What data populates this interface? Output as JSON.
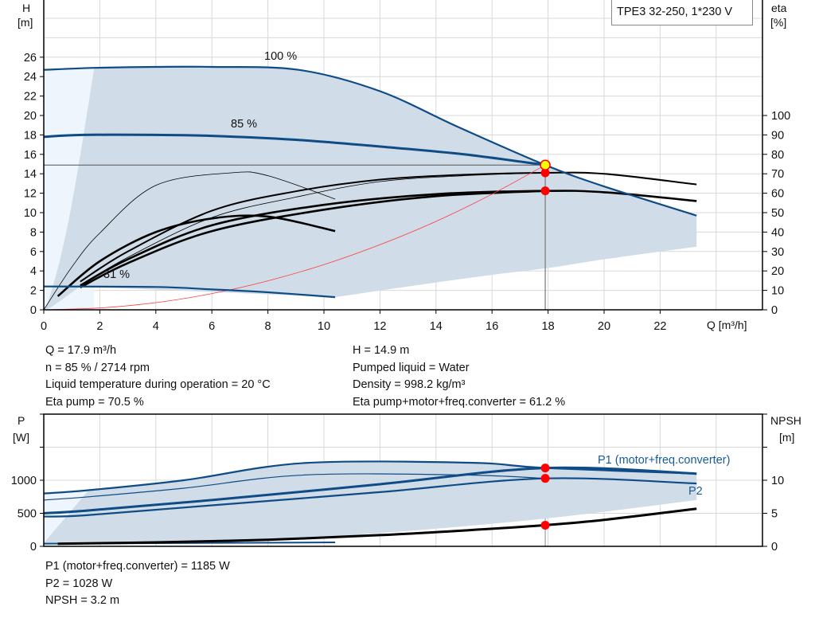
{
  "title": "TPE3 32-250, 1*230 V",
  "colors": {
    "curve_blue": "#0f4c86",
    "shade": "#d0dce8",
    "shade_light": "#eef5fc",
    "grid": "#d8d8d8",
    "system_curve": "#ff3b3b",
    "operating_point": "#ff0000",
    "duty_point_fill": "#ffff00"
  },
  "chart_data": [
    {
      "type": "line",
      "ylabel_left": "H",
      "ylabel_left_unit": "[m]",
      "ylabel_right": "eta",
      "ylabel_right_unit": "[%]",
      "xlabel": "Q [m³/h]",
      "xlim": [
        0,
        25.6
      ],
      "ylim_left": [
        0,
        31.9
      ],
      "ylim_right": [
        0,
        159.5
      ],
      "grid": true,
      "xticks": [
        0,
        2,
        4,
        6,
        8,
        10,
        12,
        14,
        16,
        18,
        20,
        22
      ],
      "yticks_left": [
        0,
        2,
        4,
        6,
        8,
        10,
        12,
        14,
        16,
        18,
        20,
        22,
        24,
        26
      ],
      "yticks_right": [
        0,
        10,
        20,
        30,
        40,
        50,
        60,
        70,
        80,
        90,
        100
      ],
      "curve_labels": {
        "max": "100 %",
        "duty": "85 %",
        "min": "31 %"
      },
      "head_curves": [
        {
          "speed": "100 %",
          "x": [
            0,
            1.8,
            4,
            6,
            9.1,
            12,
            14.8,
            17.9,
            20,
            23.3
          ],
          "y": [
            24.7,
            24.9,
            25,
            25,
            24.7,
            22.5,
            18.8,
            14.9,
            12.7,
            9.7
          ]
        },
        {
          "speed": "85 %",
          "x": [
            0,
            1.4,
            4,
            6,
            9,
            12,
            15,
            17.9
          ],
          "y": [
            17.8,
            18,
            18,
            17.9,
            17.5,
            16.8,
            16,
            14.9
          ]
        },
        {
          "speed": "31 %",
          "x": [
            0,
            4,
            6,
            8,
            10.4
          ],
          "y": [
            2.4,
            2.35,
            2.1,
            1.8,
            1.3
          ]
        }
      ],
      "operating_range_lower": {
        "x": [
          23.3,
          20,
          18,
          16,
          13,
          10.4
        ],
        "y": [
          6.5,
          5.2,
          4.3,
          3.6,
          2.4,
          1.3
        ]
      },
      "system_curve": {
        "x": [
          0,
          2,
          4,
          6,
          8,
          10,
          12,
          14,
          16,
          17.9
        ],
        "y": [
          0,
          0.19,
          0.74,
          1.67,
          2.98,
          4.65,
          6.7,
          9.1,
          11.9,
          14.9
        ]
      },
      "eta_curves": [
        {
          "x": [
            0.5,
            2,
            4,
            6,
            8,
            10.4
          ],
          "y": [
            7,
            25,
            40,
            47,
            48,
            40.5
          ],
          "weight": "thick"
        },
        {
          "x": [
            0,
            1,
            2,
            4,
            6.7,
            8,
            10.4
          ],
          "y": [
            0,
            22,
            39.5,
            64,
            70.5,
            69,
            57
          ],
          "weight": "thin"
        },
        {
          "x": [
            1.3,
            3,
            6,
            9,
            12,
            15,
            17.9,
            20,
            23.3
          ],
          "y": [
            14.5,
            30,
            51,
            61,
            67,
            69.5,
            70.5,
            70,
            64.5
          ],
          "weight": "thick-thin"
        },
        {
          "x": [
            1.3,
            3,
            6,
            9,
            12,
            15,
            17.9
          ],
          "y": [
            12.5,
            27,
            47.5,
            58,
            66,
            69,
            70.5
          ],
          "weight": "thin"
        },
        {
          "x": [
            1.3,
            3,
            6,
            10,
            14,
            17.9,
            20,
            23.3
          ],
          "y": [
            12.5,
            26,
            43.5,
            54,
            59.5,
            61.2,
            60.5,
            56
          ],
          "weight": "thick"
        },
        {
          "x": [
            1.3,
            3,
            6,
            10,
            14,
            17.9
          ],
          "y": [
            11.5,
            24,
            40.5,
            51.5,
            58.5,
            61.2
          ],
          "weight": "thick"
        }
      ],
      "duty_point": {
        "Q": 17.9,
        "H": 14.9,
        "eta_pump": 70.5,
        "eta_total": 61.2
      }
    },
    {
      "type": "line",
      "ylabel_left": "P",
      "ylabel_left_unit": "[W]",
      "ylabel_right": "NPSH",
      "ylabel_right_unit": "[m]",
      "xlim": [
        0,
        25.6
      ],
      "ylim_left": [
        0,
        2000
      ],
      "ylim_right": [
        0,
        20
      ],
      "grid": true,
      "yticks_left": [
        0,
        500,
        1000
      ],
      "yticks_right": [
        0,
        5,
        10
      ],
      "series_labels": {
        "p1": "P1 (motor+freq.converter)",
        "p2": "P2"
      },
      "p1_max": {
        "x": [
          0,
          1.6,
          5,
          9.3,
          15.2,
          17.9,
          23.3
        ],
        "y": [
          800,
          850,
          1000,
          1260,
          1265,
          1185,
          1100
        ]
      },
      "p2_max": {
        "x": [
          0,
          1.6,
          5,
          9.3,
          15,
          17.9
        ],
        "y": [
          700,
          750,
          880,
          1080,
          1080,
          1028
        ]
      },
      "p1_duty": {
        "x": [
          0,
          1.5,
          6,
          12,
          17.9,
          23.3
        ],
        "y": [
          500,
          540,
          700,
          940,
          1185,
          1100
        ]
      },
      "p2_duty": {
        "x": [
          0,
          1.5,
          6,
          12,
          17.9,
          23.3
        ],
        "y": [
          450,
          470,
          620,
          820,
          1028,
          950
        ]
      },
      "npsh": {
        "x": [
          0.5,
          4,
          8,
          12,
          15,
          17.9,
          20,
          23.3
        ],
        "y": [
          0.4,
          0.6,
          1.0,
          1.7,
          2.4,
          3.2,
          4.0,
          5.7
        ]
      },
      "lower_bound": {
        "x": [
          23.3,
          17.9,
          12,
          8,
          4,
          0
        ],
        "y": [
          700,
          420,
          200,
          100,
          60,
          50
        ]
      },
      "duty_point": {
        "P1": 1185,
        "P2": 1028,
        "NPSH": 3.2
      }
    }
  ],
  "info_top_left": [
    "Q = 17.9 m³/h",
    "n = 85 % / 2714 rpm",
    "Liquid temperature during operation = 20 °C",
    "Eta pump = 70.5 %"
  ],
  "info_top_right": [
    "H = 14.9 m",
    "Pumped liquid = Water",
    "Density = 998.2 kg/m³",
    "Eta pump+motor+freq.converter = 61.2 %"
  ],
  "info_bottom": [
    "P1 (motor+freq.converter) = 1185 W",
    "P2 = 1028 W",
    "NPSH = 3.2 m"
  ]
}
